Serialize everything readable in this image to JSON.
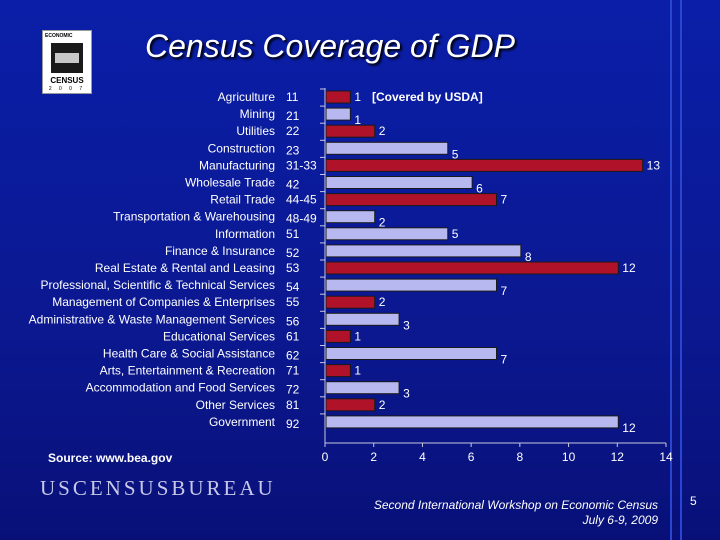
{
  "slide": {
    "title": "Census Coverage of GDP",
    "source": "Source: www.bea.gov",
    "bureau": "USCENSUSBUREAU",
    "workshop_line1": "Second International Workshop on Economic Census",
    "workshop_line2": "July 6-9, 2009",
    "page_number": "5",
    "logo": {
      "top": "ECONOMIC",
      "middle": "CENSUS",
      "year": "2 0 0 7"
    }
  },
  "colors": {
    "bar_red": "#b0122a",
    "bar_lavender": "#b8b8f0",
    "background": "#0a1ea8"
  },
  "chart_data": {
    "type": "bar",
    "orientation": "horizontal",
    "title": "Census Coverage of GDP",
    "annotation": "[Covered by USDA]",
    "categories": [
      "Agriculture",
      "Mining",
      "Utilities",
      "Construction",
      "Manufacturing",
      "Wholesale Trade",
      "Retail Trade",
      "Transportation & Warehousing",
      "Information",
      "Finance & Insurance",
      "Real Estate & Rental and Leasing",
      "Professional, Scientific & Technical Services",
      "Management of Companies & Enterprises",
      "Administrative & Waste Management Services",
      "Educational Services",
      "Health Care & Social Assistance",
      "Arts, Entertainment & Recreation",
      "Accommodation and Food Services",
      "Other Services",
      "Government"
    ],
    "codes": [
      "11",
      "21",
      "22",
      "23",
      "31-33",
      "42",
      "44-45",
      "48-49",
      "51",
      "52",
      "53",
      "54",
      "55",
      "56",
      "61",
      "62",
      "71",
      "72",
      "81",
      "92"
    ],
    "values": [
      1,
      1,
      2,
      5,
      13,
      6,
      7,
      2,
      5,
      8,
      12,
      7,
      2,
      3,
      1,
      7,
      1,
      3,
      2,
      12
    ],
    "series_color": [
      "red",
      "lavender",
      "red",
      "lavender",
      "red",
      "lavender",
      "red",
      "lavender",
      "lavender",
      "lavender",
      "red",
      "lavender",
      "red",
      "lavender",
      "red",
      "lavender",
      "red",
      "lavender",
      "red",
      "lavender"
    ],
    "xlim": [
      0,
      14
    ],
    "xticks": [
      0,
      2,
      4,
      6,
      8,
      10,
      12,
      14
    ]
  }
}
